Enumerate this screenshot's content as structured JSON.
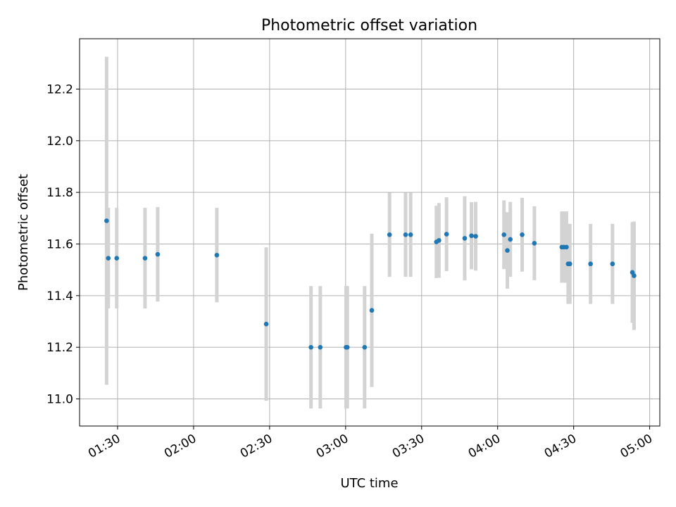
{
  "chart_data": {
    "type": "scatter",
    "title": "Photometric offset variation",
    "xlabel": "UTC time",
    "ylabel": "Photometric offset",
    "xlim": [
      "01:15",
      "05:04"
    ],
    "ylim": [
      10.895,
      12.395
    ],
    "x_ticks": [
      "01:30",
      "02:00",
      "02:30",
      "03:00",
      "03:30",
      "04:00",
      "04:30",
      "05:00"
    ],
    "y_ticks": [
      11.0,
      11.2,
      11.4,
      11.6,
      11.8,
      12.0,
      12.2
    ],
    "grid": true,
    "errorbar_color": "#d3d3d3",
    "point_color": "#1f77b4",
    "points": [
      {
        "time": "01:25:40",
        "y": 11.69,
        "yerr": 0.635
      },
      {
        "time": "01:26:20",
        "y": 11.545,
        "yerr": 0.195
      },
      {
        "time": "01:29:40",
        "y": 11.545,
        "yerr": 0.195
      },
      {
        "time": "01:40:50",
        "y": 11.545,
        "yerr": 0.195
      },
      {
        "time": "01:45:50",
        "y": 11.56,
        "yerr": 0.183
      },
      {
        "time": "02:09:10",
        "y": 11.557,
        "yerr": 0.183
      },
      {
        "time": "02:28:40",
        "y": 11.29,
        "yerr": 0.297
      },
      {
        "time": "02:46:20",
        "y": 11.2,
        "yerr": 0.237
      },
      {
        "time": "02:50:00",
        "y": 11.2,
        "yerr": 0.237
      },
      {
        "time": "03:00:10",
        "y": 11.2,
        "yerr": 0.237
      },
      {
        "time": "03:00:40",
        "y": 11.2,
        "yerr": 0.237
      },
      {
        "time": "03:07:30",
        "y": 11.2,
        "yerr": 0.237
      },
      {
        "time": "03:10:20",
        "y": 11.343,
        "yerr": 0.297
      },
      {
        "time": "03:17:20",
        "y": 11.636,
        "yerr": 0.163
      },
      {
        "time": "03:23:40",
        "y": 11.636,
        "yerr": 0.163
      },
      {
        "time": "03:25:40",
        "y": 11.636,
        "yerr": 0.163
      },
      {
        "time": "03:35:50",
        "y": 11.608,
        "yerr": 0.14
      },
      {
        "time": "03:36:50",
        "y": 11.614,
        "yerr": 0.145
      },
      {
        "time": "03:39:50",
        "y": 11.638,
        "yerr": 0.143
      },
      {
        "time": "03:47:00",
        "y": 11.622,
        "yerr": 0.163
      },
      {
        "time": "03:49:40",
        "y": 11.632,
        "yerr": 0.13
      },
      {
        "time": "03:51:20",
        "y": 11.63,
        "yerr": 0.133
      },
      {
        "time": "04:02:30",
        "y": 11.636,
        "yerr": 0.133
      },
      {
        "time": "04:03:50",
        "y": 11.575,
        "yerr": 0.148
      },
      {
        "time": "04:05:00",
        "y": 11.618,
        "yerr": 0.145
      },
      {
        "time": "04:09:40",
        "y": 11.636,
        "yerr": 0.143
      },
      {
        "time": "04:14:30",
        "y": 11.603,
        "yerr": 0.143
      },
      {
        "time": "04:25:20",
        "y": 11.588,
        "yerr": 0.138
      },
      {
        "time": "04:26:10",
        "y": 11.588,
        "yerr": 0.138
      },
      {
        "time": "04:27:10",
        "y": 11.588,
        "yerr": 0.138
      },
      {
        "time": "04:27:50",
        "y": 11.523,
        "yerr": 0.155
      },
      {
        "time": "04:28:30",
        "y": 11.523,
        "yerr": 0.155
      },
      {
        "time": "04:36:40",
        "y": 11.523,
        "yerr": 0.155
      },
      {
        "time": "04:45:20",
        "y": 11.523,
        "yerr": 0.155
      },
      {
        "time": "04:53:10",
        "y": 11.49,
        "yerr": 0.195
      },
      {
        "time": "04:53:50",
        "y": 11.477,
        "yerr": 0.21
      }
    ]
  }
}
